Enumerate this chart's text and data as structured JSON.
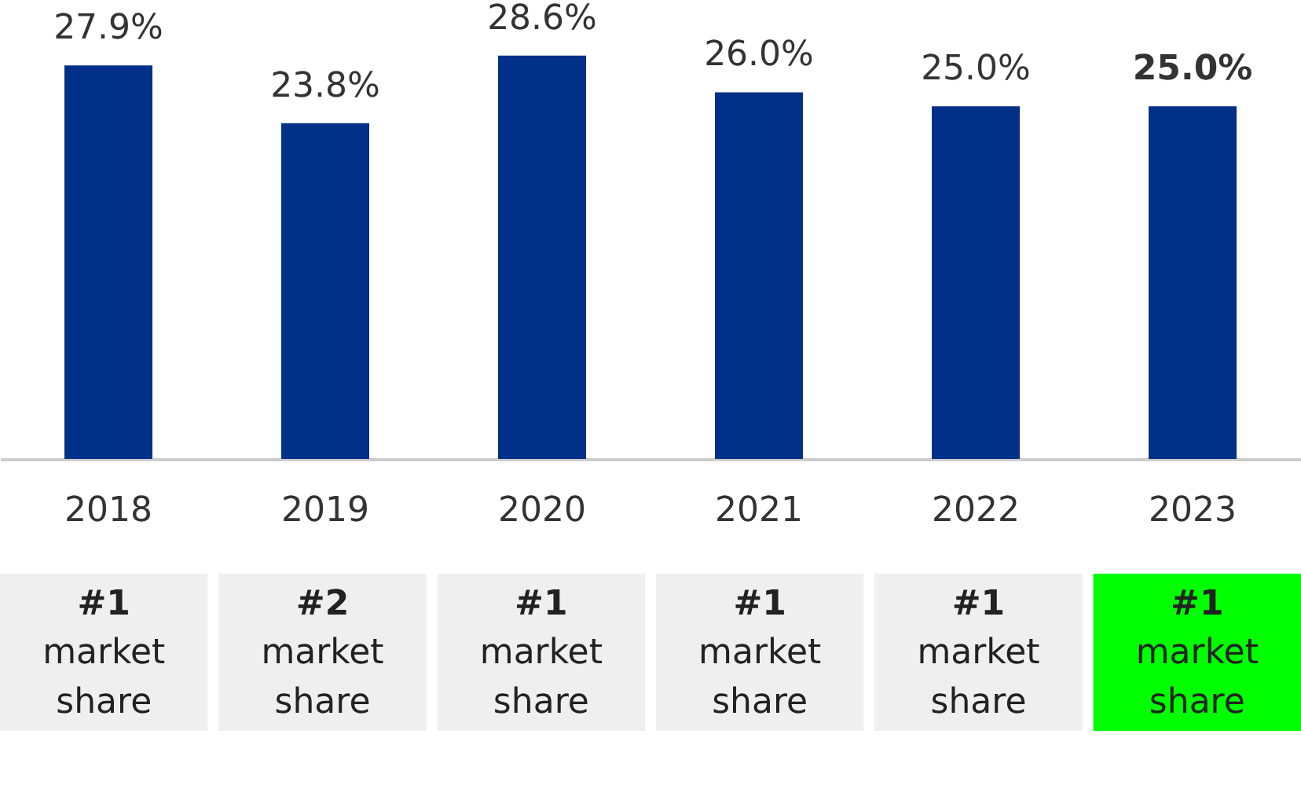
{
  "chart_data": {
    "type": "bar",
    "categories": [
      "2018",
      "2019",
      "2020",
      "2021",
      "2022",
      "2023"
    ],
    "values": [
      27.9,
      23.8,
      28.6,
      26.0,
      25.0,
      25.0
    ],
    "value_labels": [
      "27.9%",
      "23.8%",
      "28.6%",
      "26.0%",
      "25.0%",
      "25.0%"
    ],
    "color": "#003087",
    "annotations": [
      "#1 market share",
      "#2 market share",
      "#1 market share",
      "#1 market share",
      "#1 market share",
      "#1 market share"
    ]
  }
}
